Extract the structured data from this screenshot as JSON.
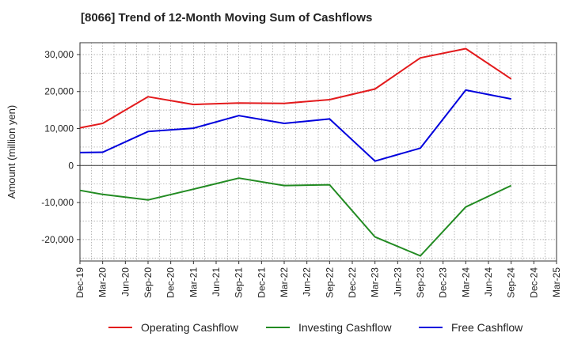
{
  "chart_data": {
    "type": "line",
    "title": "[8066]  Trend of 12-Month Moving Sum of Cashflows",
    "ylabel": "Amount (million yen)",
    "xlabel": "",
    "ylim": [
      -25800,
      33200
    ],
    "yticks": [
      30000,
      20000,
      10000,
      0,
      -10000,
      -20000
    ],
    "ytick_labels": [
      "30,000",
      "20,000",
      "10,000",
      "0",
      "-10,000",
      "-20,000"
    ],
    "categories": [
      "Dec-19",
      "Mar-20",
      "Jun-20",
      "Sep-20",
      "Dec-20",
      "Mar-21",
      "Jun-21",
      "Sep-21",
      "Dec-21",
      "Mar-22",
      "Jun-22",
      "Sep-22",
      "Dec-22",
      "Mar-23",
      "Jun-23",
      "Sep-23",
      "Dec-23",
      "Mar-24",
      "Jun-24",
      "Sep-24",
      "Dec-24",
      "Mar-25"
    ],
    "grid": true,
    "legend_position": "bottom",
    "series": [
      {
        "name": "Operating Cashflow",
        "color": "#e31a1c",
        "points": [
          [
            "Dec-19",
            10200
          ],
          [
            "Mar-20",
            11400
          ],
          [
            "Sep-20",
            18600
          ],
          [
            "Mar-21",
            16500
          ],
          [
            "Sep-21",
            16900
          ],
          [
            "Mar-22",
            16800
          ],
          [
            "Sep-22",
            17800
          ],
          [
            "Mar-23",
            20700
          ],
          [
            "Sep-23",
            29100
          ],
          [
            "Mar-24",
            31600
          ],
          [
            "Sep-24",
            23400
          ]
        ]
      },
      {
        "name": "Investing Cashflow",
        "color": "#228b22",
        "points": [
          [
            "Dec-19",
            -6700
          ],
          [
            "Mar-20",
            -7800
          ],
          [
            "Sep-20",
            -9300
          ],
          [
            "Mar-21",
            -6400
          ],
          [
            "Sep-21",
            -3400
          ],
          [
            "Mar-22",
            -5400
          ],
          [
            "Sep-22",
            -5200
          ],
          [
            "Mar-23",
            -19300
          ],
          [
            "Sep-23",
            -24400
          ],
          [
            "Mar-24",
            -11200
          ],
          [
            "Sep-24",
            -5400
          ]
        ]
      },
      {
        "name": "Free Cashflow",
        "color": "#0000dd",
        "points": [
          [
            "Dec-19",
            3500
          ],
          [
            "Mar-20",
            3600
          ],
          [
            "Sep-20",
            9200
          ],
          [
            "Mar-21",
            10100
          ],
          [
            "Sep-21",
            13500
          ],
          [
            "Mar-22",
            11400
          ],
          [
            "Sep-22",
            12600
          ],
          [
            "Mar-23",
            1200
          ],
          [
            "Sep-23",
            4700
          ],
          [
            "Mar-24",
            20400
          ],
          [
            "Sep-24",
            18000
          ]
        ]
      }
    ]
  }
}
